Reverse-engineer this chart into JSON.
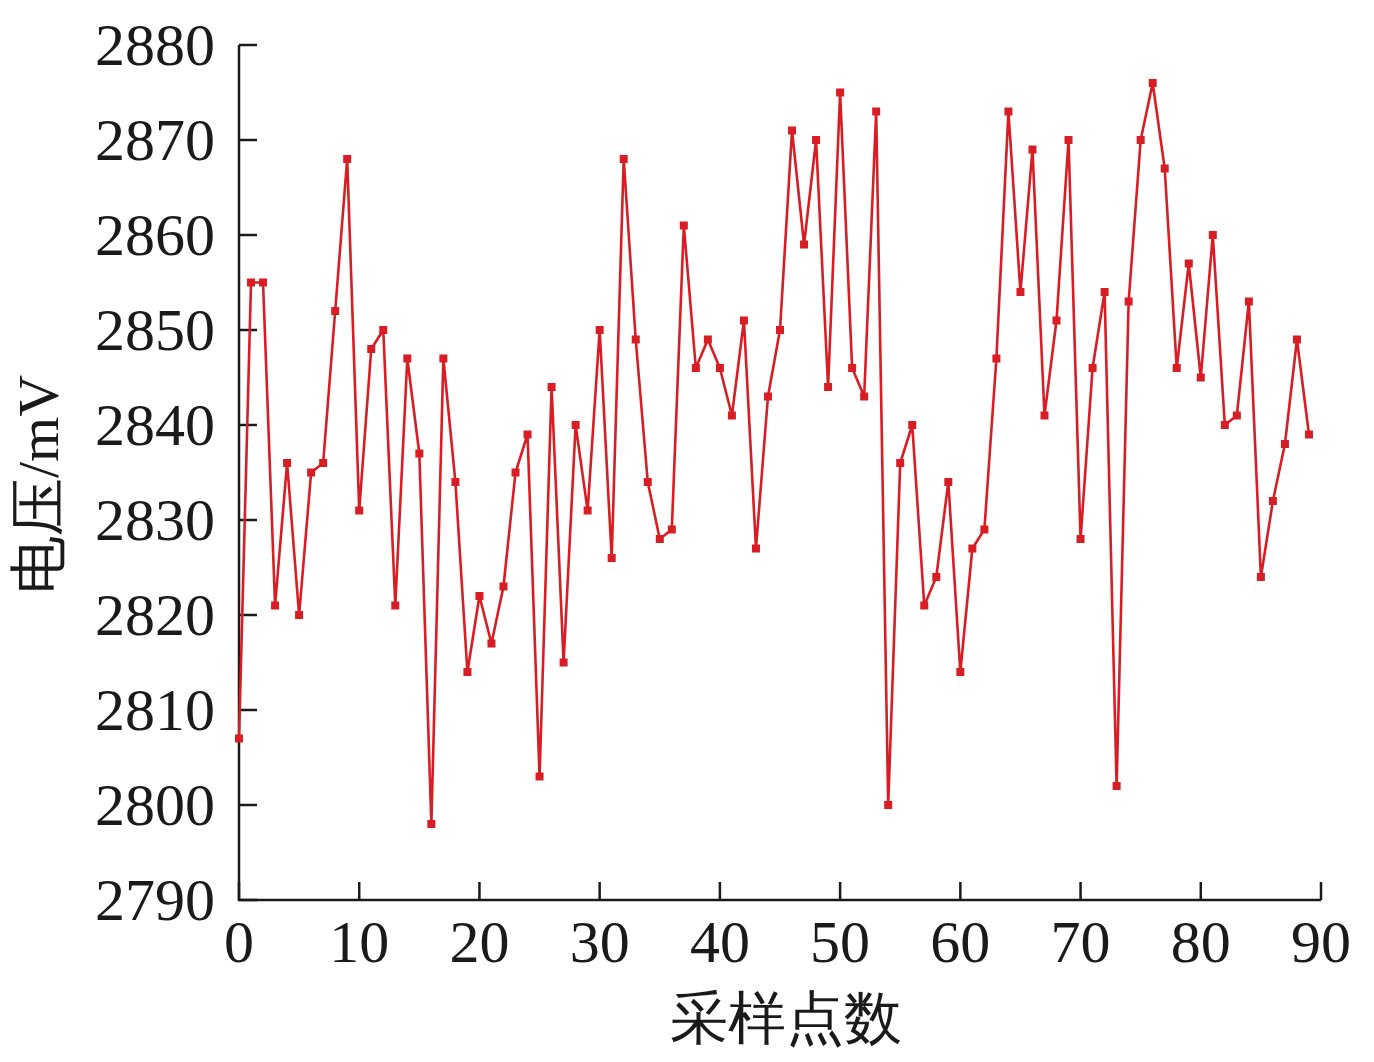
{
  "chart_data": {
    "type": "line",
    "xlabel": "采样点数",
    "ylabel": "电压/mV",
    "x": [
      0,
      1,
      2,
      3,
      4,
      5,
      6,
      7,
      8,
      9,
      10,
      11,
      12,
      13,
      14,
      15,
      16,
      17,
      18,
      19,
      20,
      21,
      22,
      23,
      24,
      25,
      26,
      27,
      28,
      29,
      30,
      31,
      32,
      33,
      34,
      35,
      36,
      37,
      38,
      39,
      40,
      41,
      42,
      43,
      44,
      45,
      46,
      47,
      48,
      49,
      50,
      51,
      52,
      53,
      54,
      55,
      56,
      57,
      58,
      59,
      60,
      61,
      62,
      63,
      64,
      65,
      66,
      67,
      68,
      69,
      70,
      71,
      72,
      73,
      74,
      75,
      76,
      77,
      78,
      79,
      80,
      81,
      82,
      83,
      84,
      85,
      86,
      87,
      88,
      89
    ],
    "series": [
      {
        "color": "#d81e24",
        "values": [
          2807,
          2855,
          2855,
          2821,
          2836,
          2820,
          2835,
          2836,
          2852,
          2868,
          2831,
          2848,
          2850,
          2821,
          2847,
          2837,
          2798,
          2847,
          2834,
          2814,
          2822,
          2817,
          2823,
          2835,
          2839,
          2803,
          2844,
          2815,
          2840,
          2831,
          2850,
          2826,
          2868,
          2849,
          2834,
          2828,
          2829,
          2861,
          2846,
          2849,
          2846,
          2841,
          2851,
          2827,
          2843,
          2850,
          2871,
          2859,
          2870,
          2844,
          2875,
          2846,
          2843,
          2873,
          2800,
          2836,
          2840,
          2821,
          2824,
          2834,
          2814,
          2827,
          2829,
          2847,
          2873,
          2854,
          2869,
          2841,
          2851,
          2870,
          2828,
          2846,
          2854,
          2802,
          2853,
          2870,
          2876,
          2867,
          2846,
          2857,
          2845,
          2860,
          2840,
          2841,
          2853,
          2824,
          2832,
          2838,
          2849,
          2839
        ]
      }
    ],
    "xlim": [
      0,
      90
    ],
    "ylim": [
      2790,
      2880
    ],
    "xticks": [
      0,
      10,
      20,
      30,
      40,
      50,
      60,
      70,
      80,
      90
    ],
    "yticks": [
      2790,
      2800,
      2810,
      2820,
      2830,
      2840,
      2850,
      2860,
      2870,
      2880
    ],
    "marker": "square",
    "line_style": "solid"
  }
}
